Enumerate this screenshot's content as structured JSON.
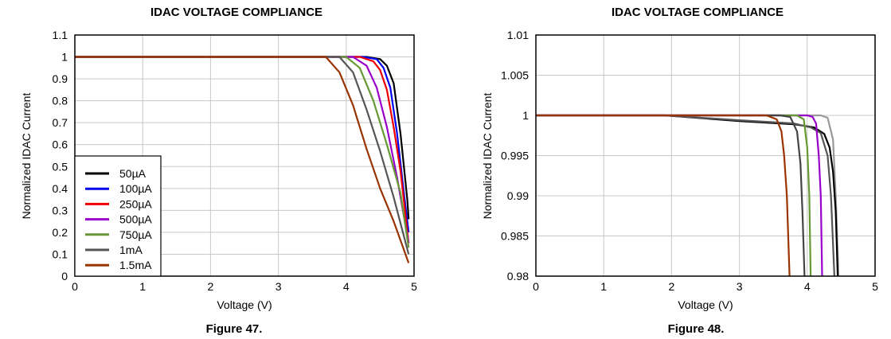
{
  "charts": [
    {
      "title": "IDAC VOLTAGE COMPLIANCE",
      "caption": "Figure 47.",
      "chart_data": {
        "type": "line",
        "title": "IDAC VOLTAGE COMPLIANCE",
        "xlabel": "Voltage (V)",
        "ylabel": "Normalized IDAC Current",
        "xlim": [
          0,
          5
        ],
        "ylim": [
          0,
          1.1
        ],
        "xticks": [
          "0",
          "1",
          "2",
          "3",
          "4",
          "5"
        ],
        "yticks": [
          "0",
          "0.1",
          "0.2",
          "0.3",
          "0.4",
          "0.5",
          "0.6",
          "0.7",
          "0.8",
          "0.9",
          "1",
          "1.1"
        ],
        "grid": true,
        "legend_position": "bottom-left",
        "series": [
          {
            "name": "50µA",
            "color": "#000000",
            "x": [
              0,
              4.3,
              4.5,
              4.6,
              4.7,
              4.8,
              4.9,
              4.92
            ],
            "y": [
              1,
              1,
              0.99,
              0.96,
              0.88,
              0.65,
              0.35,
              0.26
            ]
          },
          {
            "name": "100µA",
            "color": "#0000ee",
            "x": [
              0,
              4.25,
              4.45,
              4.55,
              4.65,
              4.75,
              4.85,
              4.92
            ],
            "y": [
              1,
              1,
              0.99,
              0.95,
              0.86,
              0.65,
              0.38,
              0.2
            ]
          },
          {
            "name": "250µA",
            "color": "#ee0000",
            "x": [
              0,
              4.2,
              4.4,
              4.5,
              4.6,
              4.7,
              4.8,
              4.92
            ],
            "y": [
              1,
              1,
              0.98,
              0.94,
              0.85,
              0.68,
              0.48,
              0.15
            ]
          },
          {
            "name": "500µA",
            "color": "#9900cc",
            "x": [
              0,
              4.1,
              4.3,
              4.45,
              4.6,
              4.75,
              4.92
            ],
            "y": [
              1,
              1,
              0.96,
              0.86,
              0.68,
              0.45,
              0.15
            ]
          },
          {
            "name": "750µA",
            "color": "#669933",
            "x": [
              0,
              4.0,
              4.2,
              4.4,
              4.6,
              4.8,
              4.92
            ],
            "y": [
              1,
              1,
              0.95,
              0.8,
              0.6,
              0.38,
              0.13
            ]
          },
          {
            "name": "1mA",
            "color": "#555555",
            "x": [
              0,
              3.9,
              4.1,
              4.3,
              4.5,
              4.7,
              4.92
            ],
            "y": [
              1,
              1,
              0.93,
              0.76,
              0.57,
              0.36,
              0.1
            ]
          },
          {
            "name": "1.5mA",
            "color": "#993300",
            "x": [
              0,
              3.7,
              3.9,
              4.1,
              4.3,
              4.5,
              4.7,
              4.92
            ],
            "y": [
              1,
              1,
              0.93,
              0.78,
              0.58,
              0.4,
              0.25,
              0.06
            ]
          }
        ]
      }
    },
    {
      "title": "IDAC VOLTAGE COMPLIANCE",
      "caption": "Figure 48.",
      "chart_data": {
        "type": "line",
        "title": "IDAC VOLTAGE COMPLIANCE",
        "xlabel": "Voltage (V)",
        "ylabel": "Normalized IDAC Current",
        "xlim": [
          0,
          5
        ],
        "ylim": [
          0.98,
          1.01
        ],
        "xticks": [
          "0",
          "1",
          "2",
          "3",
          "4",
          "5"
        ],
        "yticks": [
          "0.98",
          "0.985",
          "0.99",
          "0.995",
          "1",
          "1.005",
          "1.01"
        ],
        "grid": true,
        "series": [
          {
            "color": "#999999",
            "x": [
              0,
              4.1,
              4.2,
              4.3,
              4.38,
              4.42,
              4.45,
              4.46
            ],
            "y": [
              1,
              1,
              1,
              0.9997,
              0.997,
              0.99,
              0.983,
              0.98
            ]
          },
          {
            "color": "#000000",
            "x": [
              0,
              1.9,
              3,
              3.8,
              4.1,
              4.25,
              4.33,
              4.38,
              4.42,
              4.45
            ],
            "y": [
              1,
              1,
              0.9993,
              0.9989,
              0.9985,
              0.9977,
              0.996,
              0.993,
              0.988,
              0.98
            ]
          },
          {
            "color": "#555555",
            "x": [
              0,
              1.9,
              3,
              3.8,
              4.05,
              4.2,
              4.3,
              4.35,
              4.4
            ],
            "y": [
              1,
              1,
              0.9994,
              0.999,
              0.9985,
              0.9978,
              0.995,
              0.99,
              0.98
            ]
          },
          {
            "color": "#9900cc",
            "x": [
              0,
              4.0,
              4.08,
              4.13,
              4.17,
              4.2,
              4.22
            ],
            "y": [
              1,
              1,
              0.9998,
              0.999,
              0.995,
              0.99,
              0.98
            ]
          },
          {
            "color": "#669933",
            "x": [
              0,
              3.85,
              3.95,
              4.0,
              4.03,
              4.05
            ],
            "y": [
              1,
              1,
              0.9995,
              0.996,
              0.99,
              0.98
            ]
          },
          {
            "color": "#444444",
            "x": [
              0,
              3.6,
              3.75,
              3.85,
              3.9,
              3.93,
              3.96
            ],
            "y": [
              1,
              1,
              0.9998,
              0.998,
              0.994,
              0.988,
              0.98
            ]
          },
          {
            "color": "#993300",
            "x": [
              0,
              3.4,
              3.55,
              3.62,
              3.66,
              3.7,
              3.72,
              3.74
            ],
            "y": [
              1,
              1,
              0.9995,
              0.998,
              0.995,
              0.99,
              0.985,
              0.98
            ]
          }
        ]
      }
    }
  ]
}
